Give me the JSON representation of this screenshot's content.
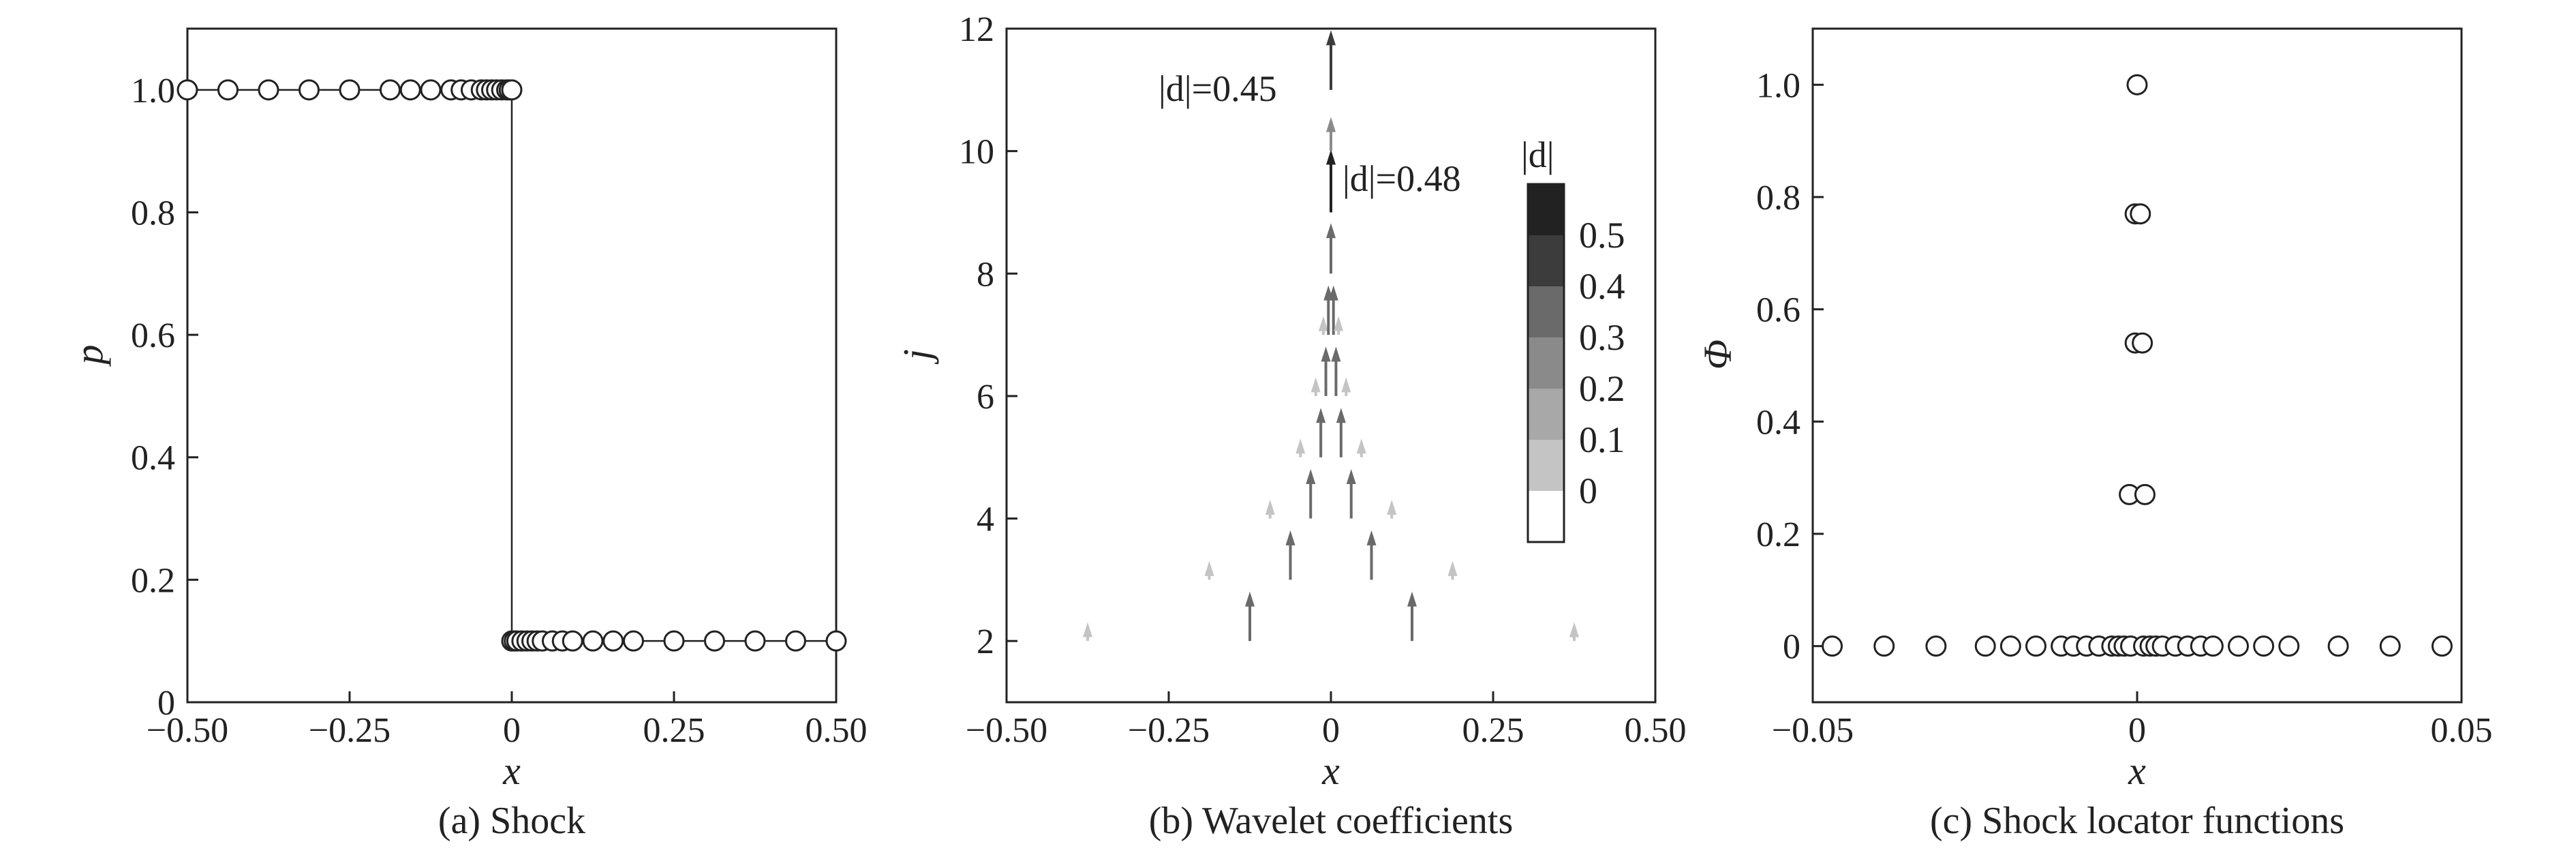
{
  "chart_data": [
    {
      "type": "line",
      "caption": "(a) Shock",
      "xlabel": "x",
      "ylabel": "p",
      "xlim": [
        -0.5,
        0.5
      ],
      "ylim": [
        0,
        1.1
      ],
      "xticks": [
        -0.5,
        -0.25,
        0,
        0.25,
        0.5
      ],
      "xtick_labels": [
        "−0.50",
        "−0.25",
        "0",
        "0.25",
        "0.50"
      ],
      "yticks": [
        0,
        0.2,
        0.4,
        0.6,
        0.8,
        1.0
      ],
      "ytick_labels": [
        "0",
        "0.2",
        "0.4",
        "0.6",
        "0.8",
        "1.0"
      ],
      "series": [
        {
          "x": [
            -0.5,
            -0.4375,
            -0.375,
            -0.3125,
            -0.25,
            -0.1875,
            -0.15625,
            -0.125,
            -0.09375,
            -0.078,
            -0.0625,
            -0.047,
            -0.039,
            -0.031,
            -0.0234,
            -0.0156,
            -0.0078,
            -0.0039,
            0
          ],
          "y": [
            1,
            1,
            1,
            1,
            1,
            1,
            1,
            1,
            1,
            1,
            1,
            1,
            1,
            1,
            1,
            1,
            1,
            1,
            1
          ]
        },
        {
          "x": [
            0,
            0.0039,
            0.0078,
            0.0156,
            0.0234,
            0.031,
            0.039,
            0.047,
            0.0625,
            0.078,
            0.09375,
            0.125,
            0.15625,
            0.1875,
            0.25,
            0.3125,
            0.375,
            0.4375,
            0.5
          ],
          "y": [
            0.1,
            0.1,
            0.1,
            0.1,
            0.1,
            0.1,
            0.1,
            0.1,
            0.1,
            0.1,
            0.1,
            0.1,
            0.1,
            0.1,
            0.1,
            0.1,
            0.1,
            0.1,
            0.1
          ]
        }
      ]
    },
    {
      "type": "scatter",
      "caption": "(b) Wavelet coefficients",
      "xlabel": "x",
      "ylabel": "j",
      "xlim": [
        -0.5,
        0.5
      ],
      "ylim": [
        1,
        12
      ],
      "xticks": [
        -0.5,
        -0.25,
        0,
        0.25,
        0.5
      ],
      "xtick_labels": [
        "−0.50",
        "−0.25",
        "0",
        "0.25",
        "0.50"
      ],
      "yticks": [
        2,
        4,
        6,
        8,
        10,
        12
      ],
      "ytick_labels": [
        "2",
        "4",
        "6",
        "8",
        "10",
        "12"
      ],
      "annotations": [
        {
          "text": "|d|=0.45",
          "x": 0,
          "y": 11.4
        },
        {
          "text": "|d|=0.48",
          "x": 0,
          "y": 9.3
        }
      ],
      "colorbar": {
        "title": "|d|",
        "levels": [
          "0",
          "0.1",
          "0.2",
          "0.3",
          "0.4",
          "0.5"
        ],
        "colors": [
          "#ffffff",
          "#c4c4c4",
          "#a8a8a8",
          "#8a8a8a",
          "#6a6a6a",
          "#3c3c3c",
          "#222222"
        ]
      },
      "arrows": [
        {
          "x": -0.375,
          "j": 2,
          "d": 0.05
        },
        {
          "x": -0.125,
          "j": 2,
          "d": 0.35
        },
        {
          "x": 0.125,
          "j": 2,
          "d": 0.35
        },
        {
          "x": 0.375,
          "j": 2,
          "d": 0.05
        },
        {
          "x": -0.1875,
          "j": 3,
          "d": 0.05
        },
        {
          "x": -0.0625,
          "j": 3,
          "d": 0.35
        },
        {
          "x": 0.0625,
          "j": 3,
          "d": 0.35
        },
        {
          "x": 0.1875,
          "j": 3,
          "d": 0.05
        },
        {
          "x": -0.09375,
          "j": 4,
          "d": 0.05
        },
        {
          "x": -0.03125,
          "j": 4,
          "d": 0.35
        },
        {
          "x": 0.03125,
          "j": 4,
          "d": 0.35
        },
        {
          "x": 0.09375,
          "j": 4,
          "d": 0.05
        },
        {
          "x": -0.047,
          "j": 5,
          "d": 0.05
        },
        {
          "x": -0.0156,
          "j": 5,
          "d": 0.35
        },
        {
          "x": 0.0156,
          "j": 5,
          "d": 0.35
        },
        {
          "x": 0.047,
          "j": 5,
          "d": 0.05
        },
        {
          "x": -0.0234,
          "j": 6,
          "d": 0.05
        },
        {
          "x": -0.0078,
          "j": 6,
          "d": 0.35
        },
        {
          "x": 0.0078,
          "j": 6,
          "d": 0.35
        },
        {
          "x": 0.0234,
          "j": 6,
          "d": 0.05
        },
        {
          "x": -0.0117,
          "j": 7,
          "d": 0.05
        },
        {
          "x": -0.0039,
          "j": 7,
          "d": 0.35
        },
        {
          "x": 0.0039,
          "j": 7,
          "d": 0.35
        },
        {
          "x": 0.0117,
          "j": 7,
          "d": 0.05
        },
        {
          "x": 0,
          "j": 8,
          "d": 0.36
        },
        {
          "x": 0,
          "j": 9,
          "d": 0.48
        },
        {
          "x": 0,
          "j": 10,
          "d": 0.2
        },
        {
          "x": 0,
          "j": 11,
          "d": 0.45
        }
      ]
    },
    {
      "type": "scatter",
      "caption": "(c) Shock locator functions",
      "xlabel": "x",
      "ylabel": "Φ",
      "xlim": [
        -0.05,
        0.05
      ],
      "ylim": [
        -0.1,
        1.1
      ],
      "xticks": [
        -0.05,
        0,
        0.05
      ],
      "xtick_labels": [
        "−0.05",
        "0",
        "0.05"
      ],
      "yticks": [
        0,
        0.2,
        0.4,
        0.6,
        0.8,
        1.0
      ],
      "ytick_labels": [
        "0",
        "0.2",
        "0.4",
        "0.6",
        "0.8",
        "1.0"
      ],
      "series": [
        {
          "x": [
            -0.047,
            -0.039,
            -0.031,
            -0.0234,
            -0.0195,
            -0.0156,
            -0.0117,
            -0.0098,
            -0.0078,
            -0.0059,
            -0.0039,
            -0.0029,
            -0.002,
            -0.001,
            0.001,
            0.002,
            0.0029,
            0.0039,
            0.0059,
            0.0078,
            0.0098,
            0.0117,
            0.0156,
            0.0195,
            0.0234,
            0.031,
            0.039,
            0.047,
            -0.0012,
            0.0012,
            -0.0003,
            0.0008,
            -0.0003,
            0.0005,
            0
          ],
          "y": [
            0,
            0,
            0,
            0,
            0,
            0,
            0,
            0,
            0,
            0,
            0,
            0,
            0,
            0,
            0,
            0,
            0,
            0,
            0,
            0,
            0,
            0,
            0,
            0,
            0,
            0,
            0,
            0,
            0.27,
            0.27,
            0.54,
            0.54,
            0.77,
            0.77,
            1.0
          ]
        }
      ]
    }
  ]
}
